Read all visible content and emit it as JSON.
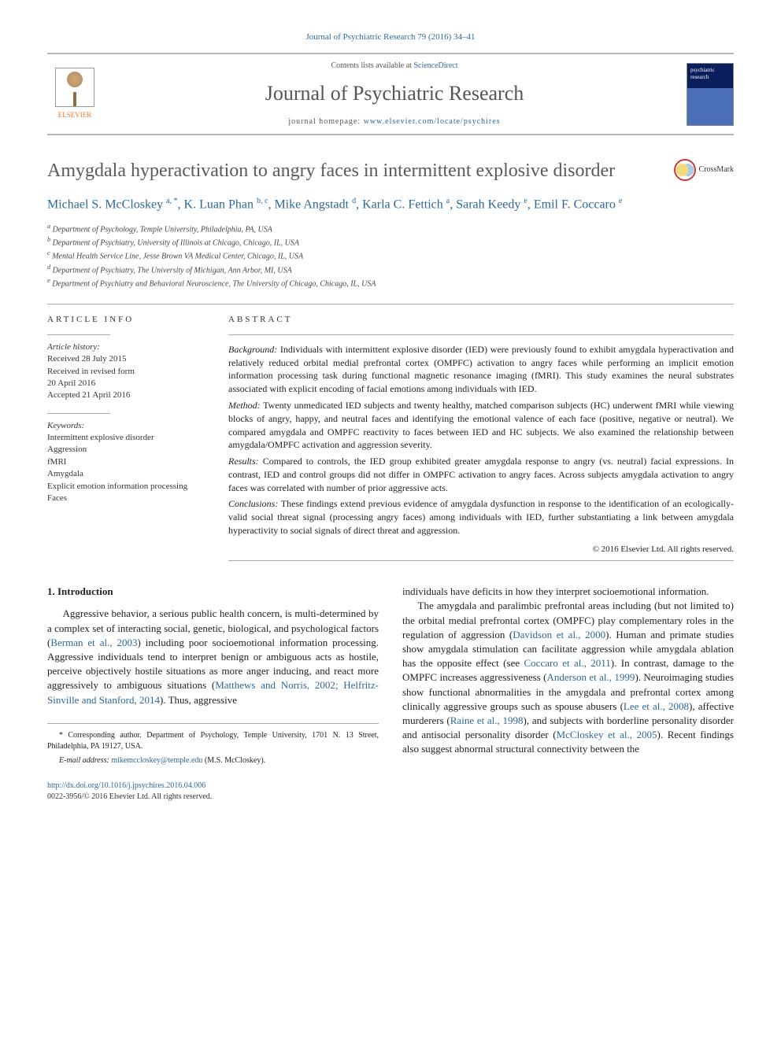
{
  "citation": "Journal of Psychiatric Research 79 (2016) 34–41",
  "header": {
    "contents_prefix": "Contents lists available at ",
    "contents_link": "ScienceDirect",
    "journal_name": "Journal of Psychiatric Research",
    "homepage_prefix": "journal homepage: ",
    "homepage_url": "www.elsevier.com/locate/psychires",
    "publisher": "ELSEVIER"
  },
  "article": {
    "title": "Amygdala hyperactivation to angry faces in intermittent explosive disorder",
    "crossmark_label": "CrossMark"
  },
  "authors_html": "Michael S. McCloskey <sup>a, *</sup>, K. Luan Phan <sup>b, c</sup>, Mike Angstadt <sup>d</sup>, Karla C. Fettich <sup>a</sup>, Sarah Keedy <sup>e</sup>, Emil F. Coccaro <sup>e</sup>",
  "affiliations": [
    "a Department of Psychology, Temple University, Philadelphia, PA, USA",
    "b Department of Psychiatry, University of Illinois at Chicago, Chicago, IL, USA",
    "c Mental Health Service Line, Jesse Brown VA Medical Center, Chicago, IL, USA",
    "d Department of Psychiatry, The University of Michigan, Ann Arbor, MI, USA",
    "e Department of Psychiatry and Behavioral Neuroscience, The University of Chicago, Chicago, IL, USA"
  ],
  "info": {
    "header": "ARTICLE INFO",
    "history_label": "Article history:",
    "history": [
      "Received 28 July 2015",
      "Received in revised form",
      "20 April 2016",
      "Accepted 21 April 2016"
    ],
    "keywords_label": "Keywords:",
    "keywords": [
      "Intermittent explosive disorder",
      "Aggression",
      "fMRI",
      "Amygdala",
      "Explicit emotion information processing",
      "Faces"
    ]
  },
  "abstract": {
    "header": "ABSTRACT",
    "background_label": "Background:",
    "background": "Individuals with intermittent explosive disorder (IED) were previously found to exhibit amygdala hyperactivation and relatively reduced orbital medial prefrontal cortex (OMPFC) activation to angry faces while performing an implicit emotion information processing task during functional magnetic resonance imaging (fMRI). This study examines the neural substrates associated with explicit encoding of facial emotions among individuals with IED.",
    "method_label": "Method:",
    "method": "Twenty unmedicated IED subjects and twenty healthy, matched comparison subjects (HC) underwent fMRI while viewing blocks of angry, happy, and neutral faces and identifying the emotional valence of each face (positive, negative or neutral). We compared amygdala and OMPFC reactivity to faces between IED and HC subjects. We also examined the relationship between amygdala/OMPFC activation and aggression severity.",
    "results_label": "Results:",
    "results": "Compared to controls, the IED group exhibited greater amygdala response to angry (vs. neutral) facial expressions. In contrast, IED and control groups did not differ in OMPFC activation to angry faces. Across subjects amygdala activation to angry faces was correlated with number of prior aggressive acts.",
    "conclusions_label": "Conclusions:",
    "conclusions": "These findings extend previous evidence of amygdala dysfunction in response to the identification of an ecologically-valid social threat signal (processing angry faces) among individuals with IED, further substantiating a link between amygdala hyperactivity to social signals of direct threat and aggression.",
    "copyright": "© 2016 Elsevier Ltd. All rights reserved."
  },
  "body": {
    "section_number": "1.",
    "section_title": "Introduction",
    "col1_p1_pre": "Aggressive behavior, a serious public health concern, is multi-determined by a complex set of interacting social, genetic, biological, and psychological factors (",
    "col1_ref1": "Berman et al., 2003",
    "col1_p1_mid": ") including poor socioemotional information processing. Aggressive individuals tend to interpret benign or ambiguous acts as hostile, perceive objectively hostile situations as more anger inducing, and react more aggressively to ambiguous situations (",
    "col1_ref2": "Matthews and Norris, 2002; Helfritz-Sinville and Stanford, 2014",
    "col1_p1_post": "). Thus, aggressive",
    "col2_p1": "individuals have deficits in how they interpret socioemotional information.",
    "col2_p2_pre": "The amygdala and paralimbic prefrontal areas including (but not limited to) the orbital medial prefrontal cortex (OMPFC) play complementary roles in the regulation of aggression (",
    "col2_ref1": "Davidson et al., 2000",
    "col2_p2_a": "). Human and primate studies show amygdala stimulation can facilitate aggression while amygdala ablation has the opposite effect (see ",
    "col2_ref2": "Coccaro et al., 2011",
    "col2_p2_b": "). In contrast, damage to the OMPFC increases aggressiveness (",
    "col2_ref3": "Anderson et al., 1999",
    "col2_p2_c": "). Neuroimaging studies show functional abnormalities in the amygdala and prefrontal cortex among clinically aggressive groups such as spouse abusers (",
    "col2_ref4": "Lee et al., 2008",
    "col2_p2_d": "), affective murderers (",
    "col2_ref5": "Raine et al., 1998",
    "col2_p2_e": "), and subjects with borderline personality disorder and antisocial personality disorder (",
    "col2_ref6": "McCloskey et al., 2005",
    "col2_p2_f": "). Recent findings also suggest abnormal structural connectivity between the"
  },
  "footnotes": {
    "corresponding": "* Corresponding author. Department of Psychology, Temple University, 1701 N. 13 Street, Philadelphia, PA 19127, USA.",
    "email_label": "E-mail address:",
    "email": "mikemccloskey@temple.edu",
    "email_suffix": "(M.S. McCloskey)."
  },
  "footer": {
    "doi": "http://dx.doi.org/10.1016/j.jpsychires.2016.04.006",
    "issn": "0022-3956/© 2016 Elsevier Ltd. All rights reserved."
  }
}
